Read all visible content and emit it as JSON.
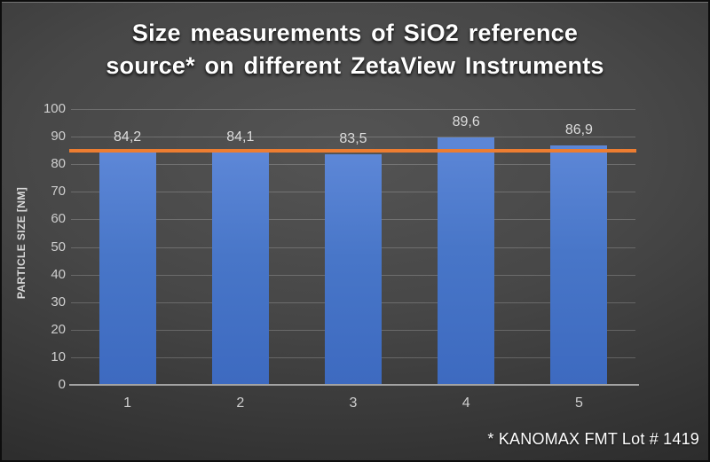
{
  "chart": {
    "title_line1": "Size measurements of SiO2 reference",
    "title_line2": "source* on different ZetaView Instruments",
    "footnote": "* KANOMAX FMT Lot # 1419"
  },
  "chart_data": {
    "type": "bar",
    "title": "Size measurements of SiO2 reference source* on different ZetaView Instruments",
    "categories": [
      "1",
      "2",
      "3",
      "4",
      "5"
    ],
    "values": [
      84.2,
      84.1,
      83.5,
      89.6,
      86.9
    ],
    "value_labels": [
      "84,2",
      "84,1",
      "83,5",
      "89,6",
      "86,9"
    ],
    "xlabel": "",
    "ylabel": "PARTICLE SIZE [NM]",
    "ylim": [
      0,
      100
    ],
    "yticks": [
      0,
      10,
      20,
      30,
      40,
      50,
      60,
      70,
      80,
      90,
      100
    ],
    "grid": true,
    "legend": false,
    "reference_line": {
      "value": 85,
      "color": "#ED7D31"
    },
    "bar_color": "#4472C4",
    "label_color": "#dcdcdc",
    "footnote": "* KANOMAX FMT Lot # 1419"
  }
}
